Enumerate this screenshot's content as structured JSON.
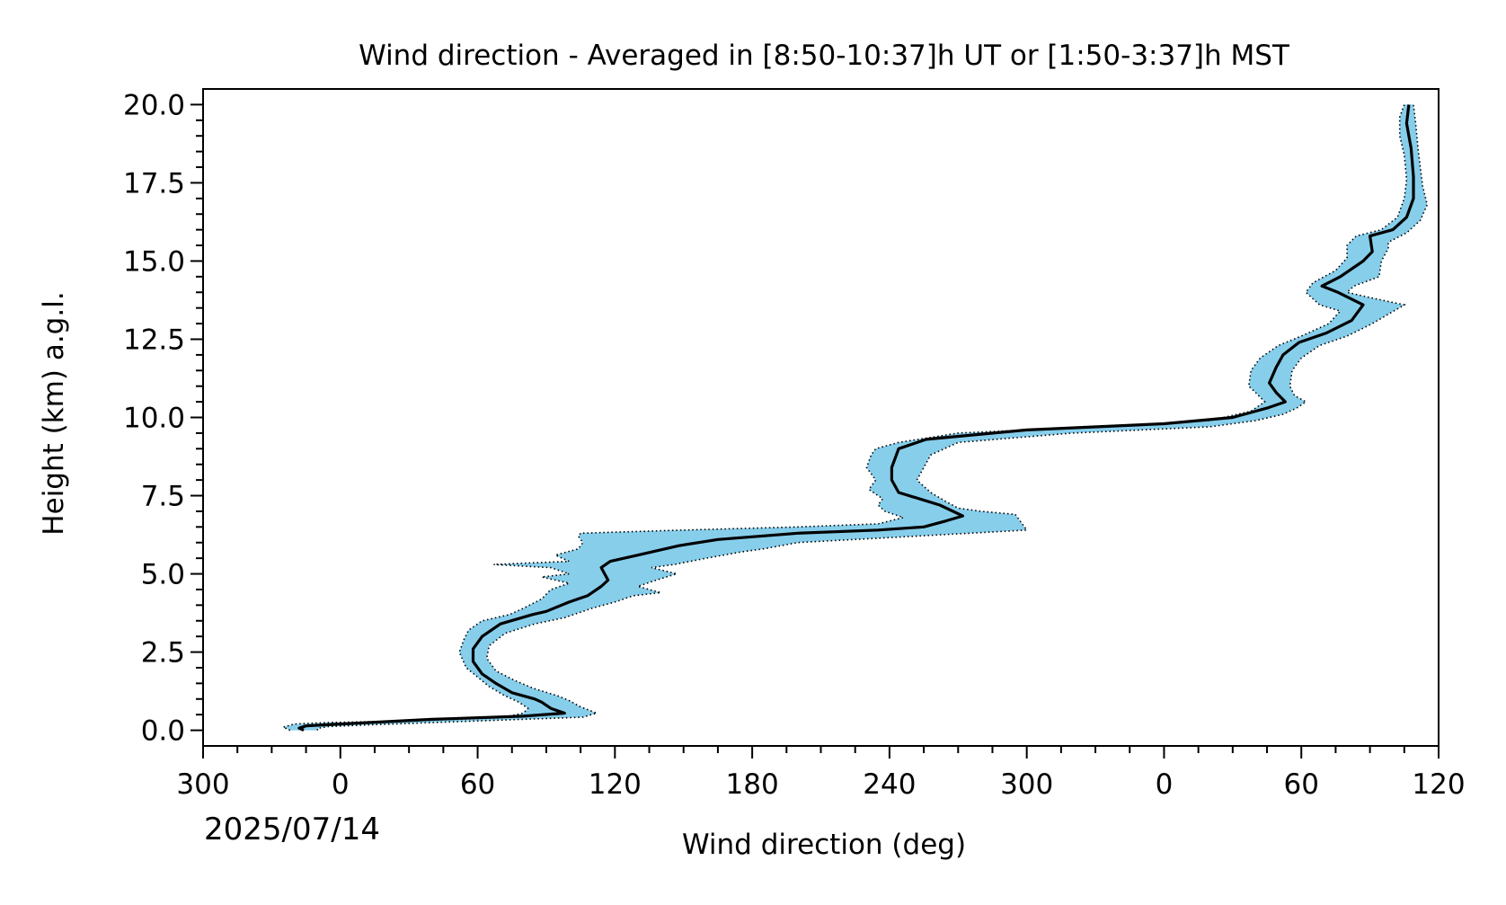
{
  "chart_data": {
    "type": "line",
    "title": "Wind direction - Averaged in [8:50-10:37]h UT or [1:50-3:37]h MST",
    "xlabel": "Wind direction (deg)",
    "ylabel": "Height (km) a.g.l.",
    "date_label": "2025/07/14",
    "x_unwrapped_range": [
      -60,
      480
    ],
    "xlim_labels": [
      "300",
      "0",
      "60",
      "120",
      "180",
      "240",
      "300",
      "0",
      "60",
      "120"
    ],
    "ylim": [
      -0.5,
      20.5
    ],
    "yticks": [
      "0.0",
      "2.5",
      "5.0",
      "7.5",
      "10.0",
      "12.5",
      "15.0",
      "17.5",
      "20.0"
    ],
    "grid": false,
    "colors": {
      "mean_line": "#000000",
      "band_fill": "#87ceeb",
      "band_edge": "#000000"
    },
    "series": [
      {
        "role": "mean",
        "points": [
          [
            -16,
            0.0
          ],
          [
            -18,
            0.07
          ],
          [
            -15,
            0.14
          ],
          [
            0,
            0.2
          ],
          [
            40,
            0.35
          ],
          [
            80,
            0.45
          ],
          [
            98,
            0.55
          ],
          [
            92,
            0.7
          ],
          [
            88,
            0.9
          ],
          [
            85,
            1.0
          ],
          [
            75,
            1.2
          ],
          [
            68,
            1.5
          ],
          [
            62,
            1.8
          ],
          [
            58,
            2.2
          ],
          [
            58,
            2.6
          ],
          [
            62,
            3.0
          ],
          [
            70,
            3.4
          ],
          [
            84,
            3.7
          ],
          [
            90,
            3.8
          ],
          [
            100,
            4.1
          ],
          [
            108,
            4.3
          ],
          [
            114,
            4.6
          ],
          [
            117,
            4.8
          ],
          [
            114,
            5.2
          ],
          [
            118,
            5.4
          ],
          [
            130,
            5.6
          ],
          [
            148,
            5.9
          ],
          [
            165,
            6.1
          ],
          [
            200,
            6.3
          ],
          [
            235,
            6.4
          ],
          [
            255,
            6.5
          ],
          [
            265,
            6.7
          ],
          [
            272,
            6.85
          ],
          [
            262,
            7.2
          ],
          [
            244,
            7.6
          ],
          [
            241,
            8.0
          ],
          [
            241,
            8.4
          ],
          [
            244,
            9.0
          ],
          [
            256,
            9.3
          ],
          [
            300,
            9.6
          ],
          [
            360,
            9.8
          ],
          [
            390,
            10.0
          ],
          [
            405,
            10.3
          ],
          [
            413,
            10.5
          ],
          [
            409,
            10.8
          ],
          [
            406,
            11.1
          ],
          [
            409,
            11.6
          ],
          [
            412,
            12.0
          ],
          [
            419,
            12.4
          ],
          [
            431,
            12.7
          ],
          [
            442,
            13.1
          ],
          [
            447,
            13.6
          ],
          [
            436,
            14.0
          ],
          [
            429,
            14.2
          ],
          [
            437,
            14.5
          ],
          [
            447,
            15.0
          ],
          [
            451,
            15.3
          ],
          [
            450,
            15.8
          ],
          [
            460,
            16.0
          ],
          [
            466,
            16.4
          ],
          [
            469,
            17.0
          ],
          [
            469,
            17.7
          ],
          [
            468,
            18.6
          ],
          [
            466,
            19.4
          ],
          [
            467,
            20.0
          ]
        ]
      },
      {
        "role": "upper_bound",
        "points": [
          [
            -10,
            0.0
          ],
          [
            -10,
            0.06
          ],
          [
            -5,
            0.12
          ],
          [
            15,
            0.18
          ],
          [
            60,
            0.3
          ],
          [
            106,
            0.42
          ],
          [
            112,
            0.55
          ],
          [
            105,
            0.75
          ],
          [
            100,
            0.95
          ],
          [
            95,
            1.1
          ],
          [
            84,
            1.35
          ],
          [
            76,
            1.6
          ],
          [
            68,
            1.9
          ],
          [
            64,
            2.3
          ],
          [
            65,
            2.7
          ],
          [
            72,
            3.1
          ],
          [
            85,
            3.4
          ],
          [
            98,
            3.6
          ],
          [
            110,
            3.9
          ],
          [
            120,
            4.1
          ],
          [
            128,
            4.3
          ],
          [
            140,
            4.4
          ],
          [
            130,
            4.6
          ],
          [
            138,
            4.8
          ],
          [
            147,
            5.0
          ],
          [
            136,
            5.2
          ],
          [
            146,
            5.3
          ],
          [
            160,
            5.5
          ],
          [
            175,
            5.7
          ],
          [
            185,
            5.8
          ],
          [
            200,
            6.0
          ],
          [
            250,
            6.2
          ],
          [
            300,
            6.4
          ],
          [
            298,
            6.6
          ],
          [
            295,
            6.9
          ],
          [
            280,
            7.0
          ],
          [
            270,
            7.1
          ],
          [
            265,
            7.3
          ],
          [
            258,
            7.6
          ],
          [
            252,
            8.0
          ],
          [
            255,
            8.4
          ],
          [
            258,
            8.8
          ],
          [
            270,
            9.2
          ],
          [
            320,
            9.5
          ],
          [
            380,
            9.7
          ],
          [
            400,
            9.9
          ],
          [
            412,
            10.1
          ],
          [
            418,
            10.3
          ],
          [
            422,
            10.5
          ],
          [
            417,
            10.7
          ],
          [
            415,
            11.0
          ],
          [
            416,
            11.5
          ],
          [
            420,
            11.9
          ],
          [
            428,
            12.3
          ],
          [
            440,
            12.6
          ],
          [
            451,
            13.0
          ],
          [
            465,
            13.6
          ],
          [
            452,
            13.8
          ],
          [
            440,
            14.0
          ],
          [
            443,
            14.2
          ],
          [
            454,
            14.5
          ],
          [
            455,
            15.0
          ],
          [
            458,
            15.4
          ],
          [
            458,
            15.6
          ],
          [
            466,
            15.9
          ],
          [
            472,
            16.3
          ],
          [
            475,
            16.8
          ],
          [
            473,
            17.4
          ],
          [
            472,
            18.0
          ],
          [
            471,
            18.6
          ],
          [
            470,
            19.4
          ],
          [
            469,
            20.0
          ]
        ]
      },
      {
        "role": "lower_bound",
        "points": [
          [
            -22,
            0.0
          ],
          [
            -25,
            0.1
          ],
          [
            -20,
            0.2
          ],
          [
            -5,
            0.25
          ],
          [
            30,
            0.3
          ],
          [
            70,
            0.4
          ],
          [
            80,
            0.55
          ],
          [
            82,
            0.7
          ],
          [
            78,
            0.9
          ],
          [
            72,
            1.1
          ],
          [
            65,
            1.4
          ],
          [
            60,
            1.7
          ],
          [
            55,
            2.0
          ],
          [
            52,
            2.5
          ],
          [
            54,
            2.9
          ],
          [
            56,
            3.2
          ],
          [
            62,
            3.5
          ],
          [
            74,
            3.7
          ],
          [
            80,
            3.9
          ],
          [
            88,
            4.2
          ],
          [
            92,
            4.5
          ],
          [
            100,
            4.7
          ],
          [
            88,
            4.9
          ],
          [
            100,
            5.0
          ],
          [
            92,
            5.2
          ],
          [
            67,
            5.3
          ],
          [
            100,
            5.4
          ],
          [
            94,
            5.6
          ],
          [
            104,
            5.8
          ],
          [
            106,
            6.0
          ],
          [
            104,
            6.2
          ],
          [
            105,
            6.3
          ],
          [
            150,
            6.4
          ],
          [
            200,
            6.5
          ],
          [
            235,
            6.6
          ],
          [
            246,
            6.8
          ],
          [
            238,
            7.0
          ],
          [
            235,
            7.2
          ],
          [
            237,
            7.4
          ],
          [
            231,
            7.7
          ],
          [
            234,
            8.0
          ],
          [
            230,
            8.4
          ],
          [
            232,
            8.8
          ],
          [
            234,
            9.0
          ],
          [
            244,
            9.2
          ],
          [
            270,
            9.5
          ],
          [
            330,
            9.7
          ],
          [
            380,
            9.9
          ],
          [
            398,
            10.2
          ],
          [
            404,
            10.5
          ],
          [
            400,
            10.8
          ],
          [
            397,
            11.0
          ],
          [
            398,
            11.5
          ],
          [
            402,
            11.9
          ],
          [
            410,
            12.3
          ],
          [
            420,
            12.6
          ],
          [
            432,
            13.0
          ],
          [
            437,
            13.4
          ],
          [
            428,
            13.6
          ],
          [
            422,
            14.0
          ],
          [
            425,
            14.3
          ],
          [
            435,
            14.7
          ],
          [
            440,
            15.1
          ],
          [
            440,
            15.5
          ],
          [
            444,
            15.8
          ],
          [
            455,
            16.0
          ],
          [
            462,
            16.4
          ],
          [
            465,
            17.0
          ],
          [
            466,
            17.6
          ],
          [
            465,
            18.4
          ],
          [
            463,
            19.0
          ],
          [
            463,
            19.6
          ],
          [
            465,
            20.0
          ]
        ]
      }
    ]
  }
}
